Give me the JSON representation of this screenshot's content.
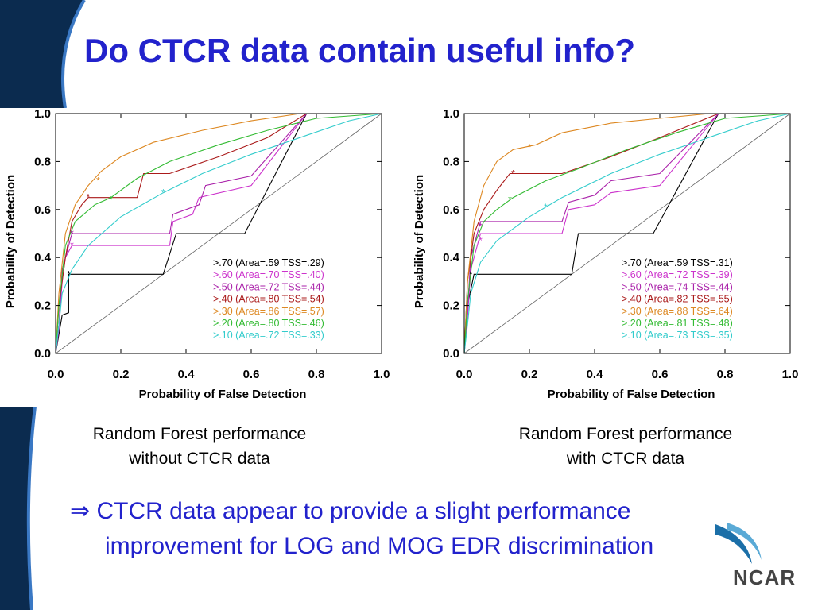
{
  "slide": {
    "title": "Do CTCR data contain useful info?",
    "caption_left_line1": "Random Forest performance",
    "caption_left_line2": "without CTCR data",
    "caption_right_line1": "Random Forest performance",
    "caption_right_line2": "with CTCR data",
    "conclusion_arrow": "⇒",
    "conclusion_line1": "CTCR data appear to provide a slight performance",
    "conclusion_line2": "improvement for LOG and MOG EDR discrimination",
    "logo_text": "NCAR",
    "accent_color": "#2222cc",
    "bar_color": "#0b2b4f"
  },
  "chart_data": [
    {
      "type": "line",
      "xlabel": "Probability of False Detection",
      "ylabel": "Probability of Detection",
      "xlim": [
        0,
        1
      ],
      "ylim": [
        0,
        1
      ],
      "xticks": [
        "0.0",
        "0.2",
        "0.4",
        "0.6",
        "0.8",
        "1.0"
      ],
      "yticks": [
        "0.0",
        "0.2",
        "0.4",
        "0.6",
        "0.8",
        "1.0"
      ],
      "legend_position": "bottom-right",
      "grid": false,
      "series": [
        {
          "name": ">.70 (Area=.59 TSS=.29)",
          "color": "#000000",
          "x": [
            0,
            0.02,
            0.04,
            0.04,
            0.33,
            0.37,
            0.37,
            0.58,
            0.77,
            1.0
          ],
          "y": [
            0,
            0.16,
            0.17,
            0.33,
            0.33,
            0.5,
            0.5,
            0.5,
            1.0,
            1.0
          ]
        },
        {
          "name": ">.60 (Area=.70 TSS=.40)",
          "color": "#cc33cc",
          "x": [
            0,
            0.01,
            0.02,
            0.03,
            0.05,
            0.35,
            0.36,
            0.42,
            0.44,
            0.6,
            0.77,
            1.0
          ],
          "y": [
            0,
            0.1,
            0.3,
            0.4,
            0.45,
            0.45,
            0.55,
            0.58,
            0.65,
            0.7,
            1.0,
            1.0
          ]
        },
        {
          "name": ">.50 (Area=.72 TSS=.44)",
          "color": "#aa22aa",
          "x": [
            0,
            0.01,
            0.02,
            0.04,
            0.05,
            0.35,
            0.36,
            0.44,
            0.46,
            0.6,
            0.77,
            1.0
          ],
          "y": [
            0,
            0.12,
            0.35,
            0.45,
            0.5,
            0.5,
            0.58,
            0.62,
            0.7,
            0.74,
            1.0,
            1.0
          ]
        },
        {
          "name": ">.40 (Area=.80 TSS=.54)",
          "color": "#aa1a1a",
          "x": [
            0,
            0.01,
            0.03,
            0.05,
            0.08,
            0.1,
            0.17,
            0.25,
            0.27,
            0.35,
            0.5,
            0.65,
            0.77,
            1.0
          ],
          "y": [
            0,
            0.2,
            0.4,
            0.55,
            0.62,
            0.65,
            0.65,
            0.65,
            0.75,
            0.75,
            0.82,
            0.9,
            1.0,
            1.0
          ]
        },
        {
          "name": ">.30 (Area=.86 TSS=.57)",
          "color": "#dd8822",
          "x": [
            0,
            0.01,
            0.03,
            0.06,
            0.1,
            0.14,
            0.2,
            0.3,
            0.45,
            0.6,
            0.75,
            0.77,
            1.0
          ],
          "y": [
            0,
            0.25,
            0.5,
            0.62,
            0.7,
            0.76,
            0.82,
            0.88,
            0.93,
            0.97,
            1.0,
            1.0,
            1.0
          ]
        },
        {
          "name": ">.20 (Area=.80 TSS=.46)",
          "color": "#33bb33",
          "x": [
            0,
            0.01,
            0.03,
            0.06,
            0.12,
            0.17,
            0.25,
            0.35,
            0.5,
            0.65,
            0.8,
            1.0
          ],
          "y": [
            0,
            0.2,
            0.45,
            0.55,
            0.62,
            0.65,
            0.73,
            0.8,
            0.87,
            0.93,
            0.98,
            1.0
          ]
        },
        {
          "name": ">.10 (Area=.72 TSS=.33)",
          "color": "#33cccc",
          "x": [
            0,
            0.01,
            0.02,
            0.05,
            0.1,
            0.2,
            0.33,
            0.45,
            0.6,
            0.75,
            0.9,
            1.0
          ],
          "y": [
            0,
            0.12,
            0.25,
            0.35,
            0.45,
            0.57,
            0.67,
            0.75,
            0.83,
            0.9,
            0.97,
            1.0
          ]
        }
      ],
      "markers": [
        {
          "series": 0,
          "x": 0.04,
          "y": 0.33
        },
        {
          "series": 1,
          "x": 0.05,
          "y": 0.45
        },
        {
          "series": 2,
          "x": 0.05,
          "y": 0.5
        },
        {
          "series": 3,
          "x": 0.1,
          "y": 0.65
        },
        {
          "series": 4,
          "x": 0.13,
          "y": 0.72
        },
        {
          "series": 5,
          "x": 0.17,
          "y": 0.64
        },
        {
          "series": 6,
          "x": 0.33,
          "y": 0.67
        }
      ]
    },
    {
      "type": "line",
      "xlabel": "Probability of False Detection",
      "ylabel": "Probability of Detection",
      "xlim": [
        0,
        1
      ],
      "ylim": [
        0,
        1
      ],
      "xticks": [
        "0.0",
        "0.2",
        "0.4",
        "0.6",
        "0.8",
        "1.0"
      ],
      "yticks": [
        "0.0",
        "0.2",
        "0.4",
        "0.6",
        "0.8",
        "1.0"
      ],
      "legend_position": "bottom-right",
      "grid": false,
      "series": [
        {
          "name": ">.70 (Area=.59 TSS=.31)",
          "color": "#000000",
          "x": [
            0,
            0.01,
            0.03,
            0.03,
            0.33,
            0.35,
            0.35,
            0.58,
            0.78,
            1.0
          ],
          "y": [
            0,
            0.2,
            0.33,
            0.33,
            0.33,
            0.5,
            0.5,
            0.5,
            1.0,
            1.0
          ]
        },
        {
          "name": ">.60 (Area=.72 TSS=.39)",
          "color": "#cc33cc",
          "x": [
            0,
            0.01,
            0.02,
            0.04,
            0.05,
            0.3,
            0.32,
            0.4,
            0.45,
            0.6,
            0.78,
            1.0
          ],
          "y": [
            0,
            0.15,
            0.35,
            0.45,
            0.5,
            0.5,
            0.6,
            0.62,
            0.67,
            0.7,
            1.0,
            1.0
          ]
        },
        {
          "name": ">.50 (Area=.74 TSS=.44)",
          "color": "#aa22aa",
          "x": [
            0,
            0.01,
            0.02,
            0.04,
            0.05,
            0.3,
            0.32,
            0.4,
            0.45,
            0.6,
            0.78,
            1.0
          ],
          "y": [
            0,
            0.18,
            0.4,
            0.5,
            0.55,
            0.55,
            0.63,
            0.66,
            0.72,
            0.75,
            1.0,
            1.0
          ]
        },
        {
          "name": ">.40 (Area=.82 TSS=.55)",
          "color": "#aa1a1a",
          "x": [
            0,
            0.01,
            0.03,
            0.06,
            0.1,
            0.14,
            0.25,
            0.3,
            0.45,
            0.6,
            0.78,
            1.0
          ],
          "y": [
            0,
            0.3,
            0.5,
            0.6,
            0.68,
            0.75,
            0.75,
            0.75,
            0.82,
            0.9,
            1.0,
            1.0
          ]
        },
        {
          "name": ">.30 (Area=.88 TSS=.64)",
          "color": "#dd8822",
          "x": [
            0,
            0.01,
            0.03,
            0.06,
            0.1,
            0.15,
            0.22,
            0.3,
            0.45,
            0.6,
            0.75,
            1.0
          ],
          "y": [
            0,
            0.3,
            0.55,
            0.7,
            0.8,
            0.85,
            0.87,
            0.92,
            0.96,
            0.98,
            1.0,
            1.0
          ]
        },
        {
          "name": ">.20 (Area=.81 TSS=.48)",
          "color": "#33bb33",
          "x": [
            0,
            0.01,
            0.03,
            0.06,
            0.1,
            0.15,
            0.25,
            0.35,
            0.5,
            0.65,
            0.8,
            1.0
          ],
          "y": [
            0,
            0.22,
            0.45,
            0.55,
            0.6,
            0.65,
            0.72,
            0.77,
            0.85,
            0.92,
            0.98,
            1.0
          ]
        },
        {
          "name": ">.10 (Area=.73 TSS=.35)",
          "color": "#33cccc",
          "x": [
            0,
            0.01,
            0.02,
            0.05,
            0.1,
            0.2,
            0.3,
            0.45,
            0.6,
            0.75,
            0.9,
            1.0
          ],
          "y": [
            0,
            0.12,
            0.25,
            0.38,
            0.47,
            0.57,
            0.65,
            0.75,
            0.83,
            0.9,
            0.97,
            1.0
          ]
        }
      ],
      "markers": [
        {
          "series": 0,
          "x": 0.02,
          "y": 0.33
        },
        {
          "series": 1,
          "x": 0.05,
          "y": 0.47
        },
        {
          "series": 2,
          "x": 0.05,
          "y": 0.53
        },
        {
          "series": 3,
          "x": 0.15,
          "y": 0.75
        },
        {
          "series": 4,
          "x": 0.2,
          "y": 0.86
        },
        {
          "series": 5,
          "x": 0.14,
          "y": 0.64
        },
        {
          "series": 6,
          "x": 0.25,
          "y": 0.61
        }
      ]
    }
  ]
}
